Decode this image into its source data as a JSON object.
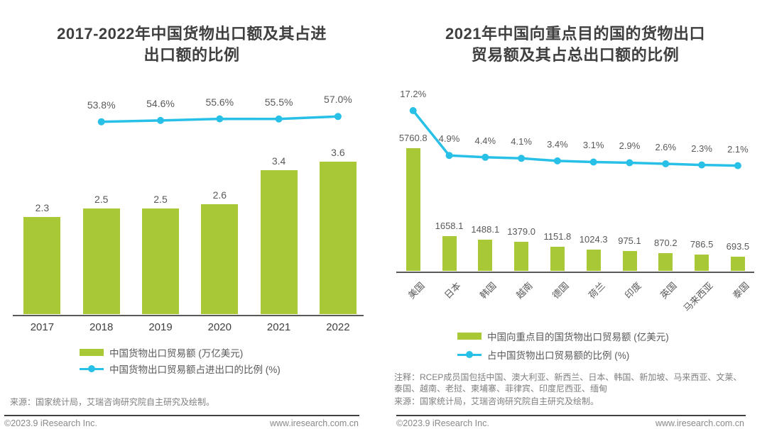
{
  "page": {
    "footer": {
      "copyright": "©2023.9 iResearch Inc.",
      "website": "www.iresearch.com.cn"
    }
  },
  "colors": {
    "bar_green": "#a8c836",
    "line_blue": "#29c0e7",
    "axis_gray": "#595959"
  },
  "chart_data": [
    {
      "type": "bar+line",
      "title": "2017-2022年中国货物出口额及其占进出口额的比例",
      "title_lines": [
        "2017-2022年中国货物出口额及其占进",
        "出口额的比例"
      ],
      "categories": [
        "2017",
        "2018",
        "2019",
        "2020",
        "2021",
        "2022"
      ],
      "series": [
        {
          "name": "中国货物出口贸易额 (万亿美元)",
          "kind": "bar",
          "color": "#a8c836",
          "values": [
            2.3,
            2.5,
            2.5,
            2.6,
            3.4,
            3.6
          ]
        },
        {
          "name": "中国货物出口贸易额占进出口的比例 (%)",
          "kind": "line",
          "color": "#29c0e7",
          "values": [
            null,
            53.8,
            54.6,
            55.6,
            55.5,
            57.0
          ]
        }
      ],
      "ylabel": "",
      "xlabel": "",
      "grid": false,
      "legend_position": "bottom",
      "source": "来源：国家统计局，艾瑞咨询研究院自主研究及绘制。"
    },
    {
      "type": "bar+line",
      "title": "2021年中国向重点目的国的货物出口贸易额及其占总出口额的比例",
      "title_lines": [
        "2021年中国向重点目的国的货物出口",
        "贸易额及其占总出口额的比例"
      ],
      "categories": [
        "美国",
        "日本",
        "韩国",
        "越南",
        "德国",
        "荷兰",
        "印度",
        "英国",
        "马来西亚",
        "泰国"
      ],
      "series": [
        {
          "name": "中国向重点目的国货物出口贸易额 (亿美元)",
          "kind": "bar",
          "color": "#a8c836",
          "values": [
            5760.8,
            1658.1,
            1488.1,
            1379.0,
            1151.8,
            1024.3,
            975.1,
            870.2,
            786.5,
            693.5
          ]
        },
        {
          "name": "占中国货物出口贸易额的比例 (%)",
          "kind": "line",
          "color": "#29c0e7",
          "values": [
            17.2,
            4.9,
            4.4,
            4.1,
            3.4,
            3.1,
            2.9,
            2.6,
            2.3,
            2.1
          ]
        }
      ],
      "ylabel": "",
      "xlabel": "",
      "grid": false,
      "legend_position": "bottom",
      "note": "注释：RCEP成员国包括中国、澳大利亚、新西兰、日本、韩国、新加坡、马来西亚、文莱、泰国、越南、老挝、柬埔寨、菲律宾、印度尼西亚、缅甸",
      "source": "来源：国家统计局，艾瑞咨询研究院自主研究及绘制。"
    }
  ]
}
